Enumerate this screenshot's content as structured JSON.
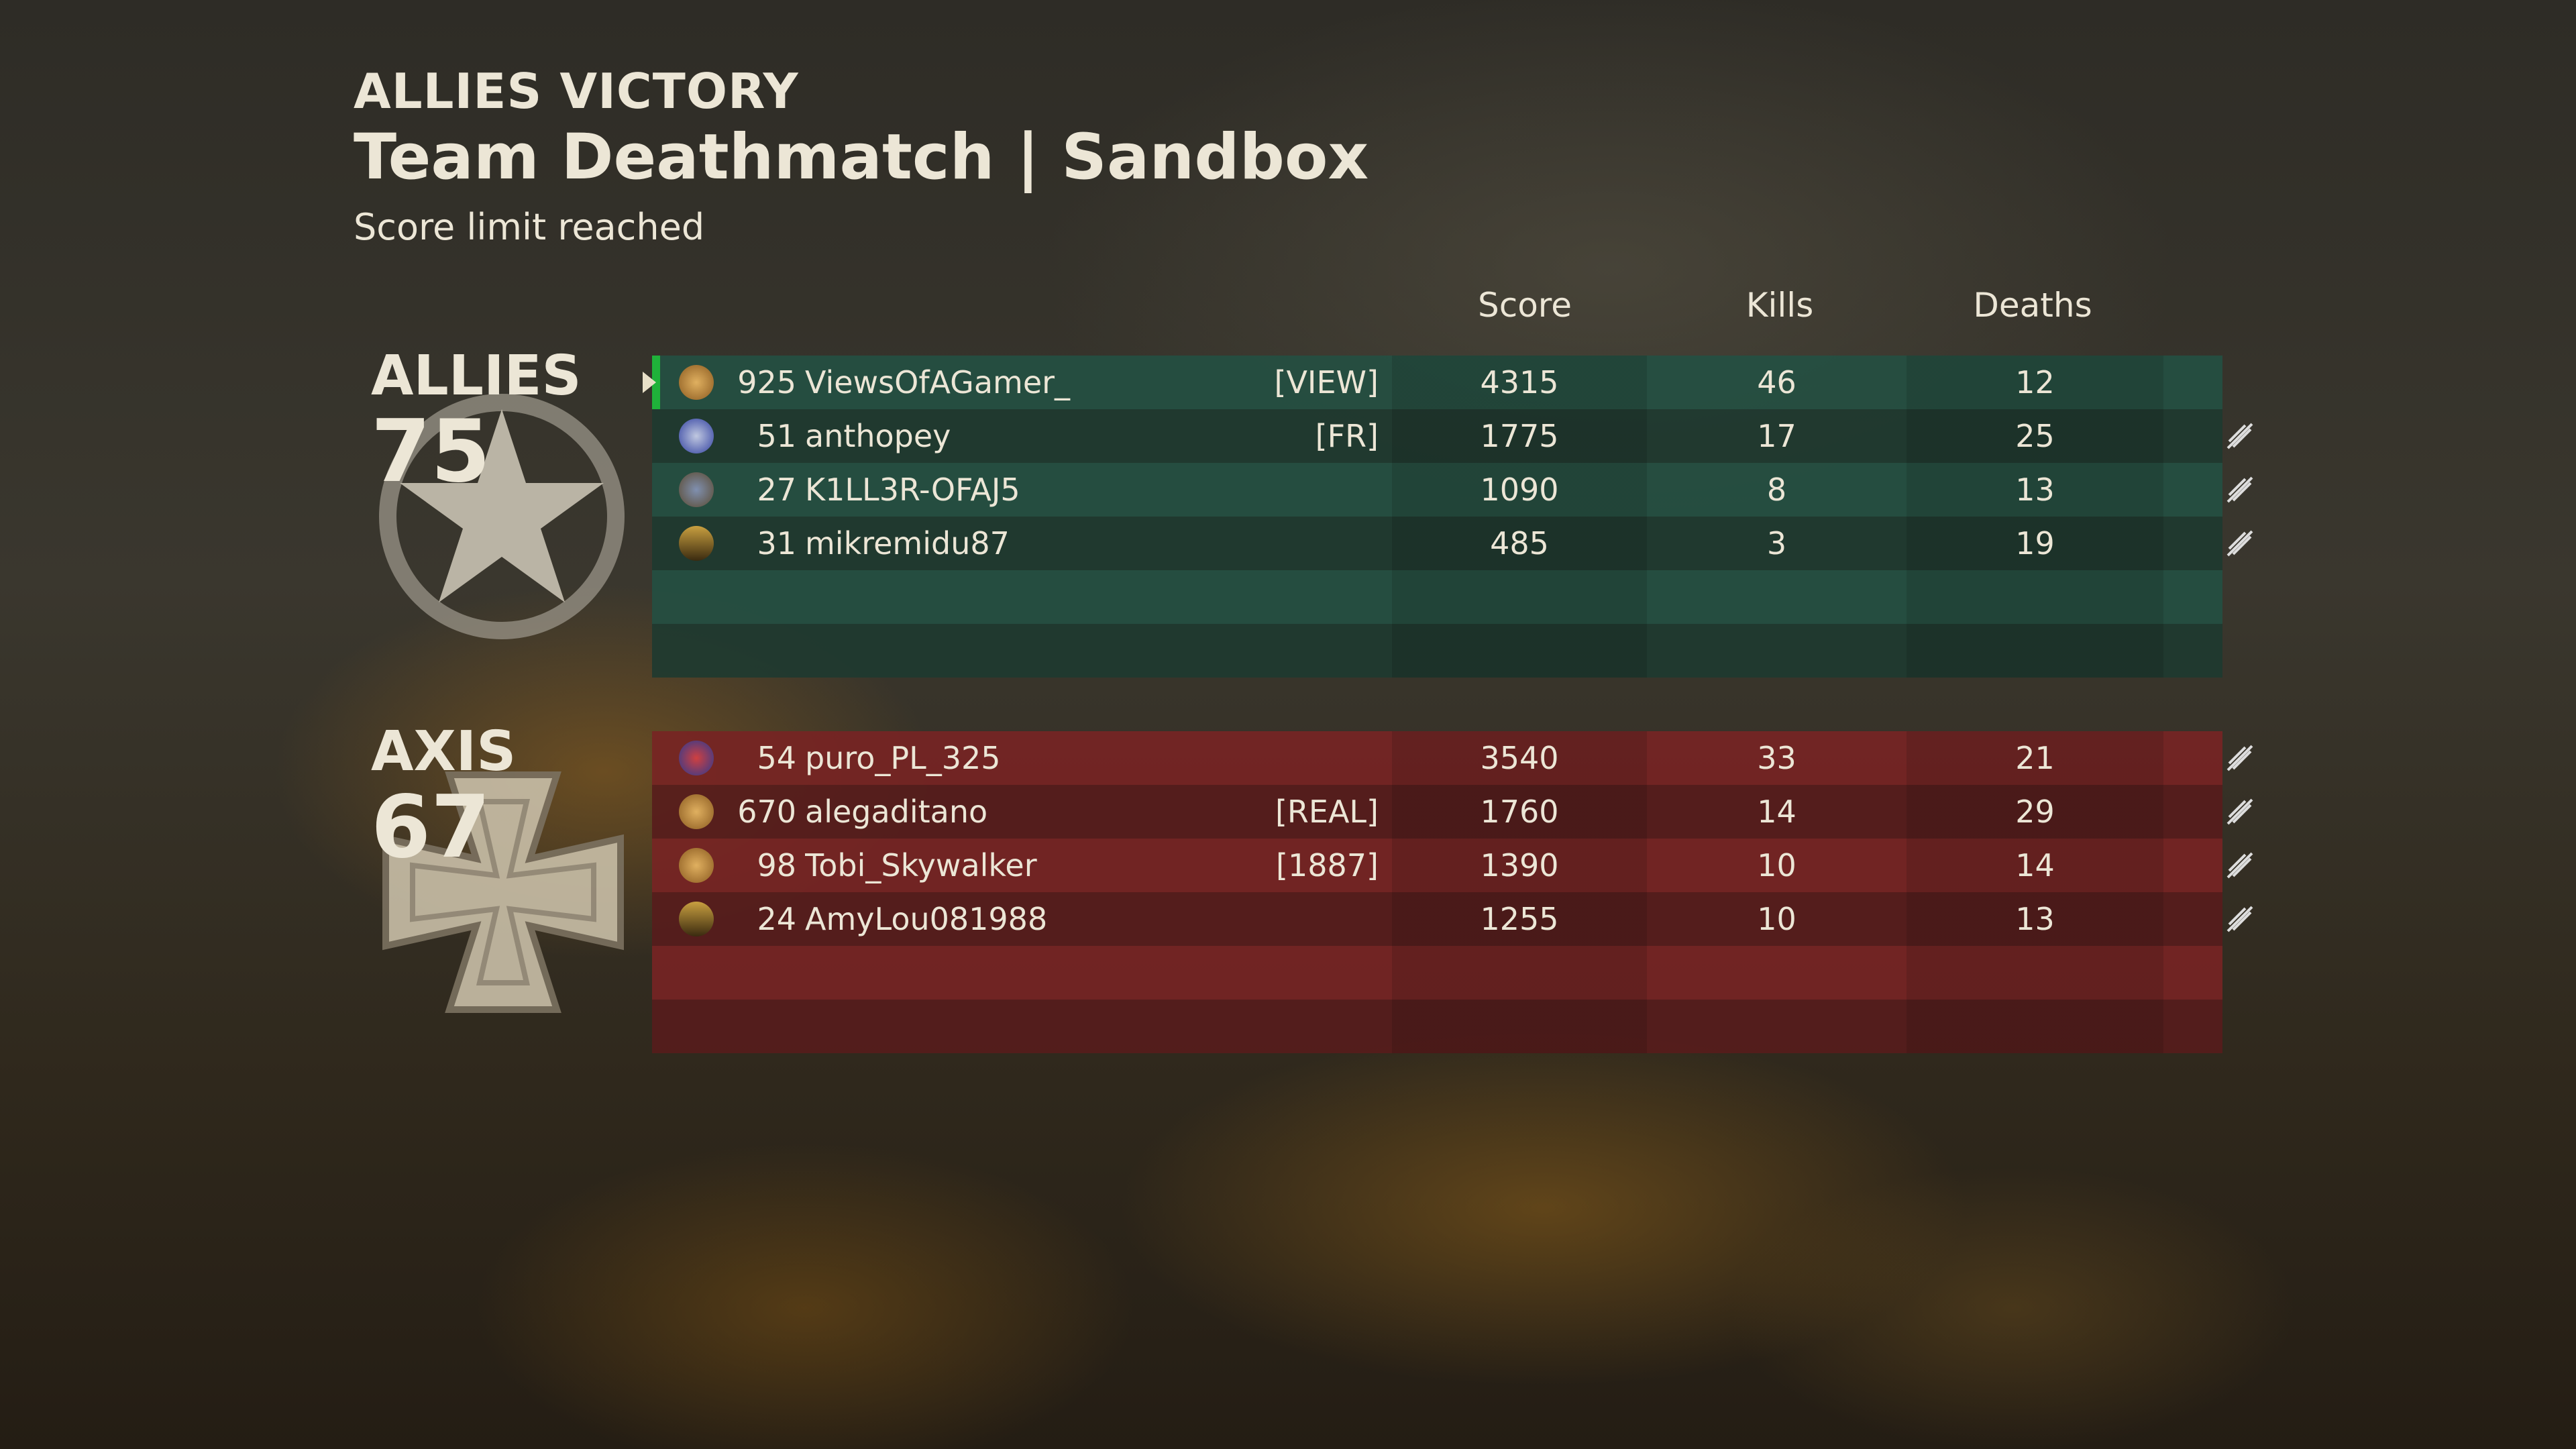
{
  "header": {
    "result": "ALLIES VICTORY",
    "mode": "Team Deathmatch | Sandbox",
    "reason": "Score limit reached"
  },
  "columns": {
    "score": "Score",
    "kills": "Kills",
    "deaths": "Deaths"
  },
  "colors": {
    "allies": "#23483f",
    "axis": "#6b2222",
    "highlight": "#1fb23a"
  },
  "allies": {
    "name": "ALLIES",
    "score": "75",
    "emblem": "star-icon",
    "players": [
      {
        "rank": "925",
        "name": "ViewsOfAGamer_",
        "clan": "[VIEW]",
        "score": "4315",
        "kills": "46",
        "deaths": "12",
        "badge": "prestige-medal",
        "self": true
      },
      {
        "rank": "51",
        "name": "anthopey",
        "clan": "[FR]",
        "score": "1775",
        "kills": "17",
        "deaths": "25",
        "badge": "blue-cross-medal"
      },
      {
        "rank": "27",
        "name": "K1LL3R-OFAJ5",
        "clan": "",
        "score": "1090",
        "kills": "8",
        "deaths": "13",
        "badge": "winged-insignia"
      },
      {
        "rank": "31",
        "name": "mikremidu87",
        "clan": "",
        "score": "485",
        "kills": "3",
        "deaths": "19",
        "badge": "sergeant-chevron"
      }
    ]
  },
  "axis": {
    "name": "AXIS",
    "score": "67",
    "emblem": "iron-cross-icon",
    "players": [
      {
        "rank": "54",
        "name": "puro_PL_325",
        "clan": "",
        "score": "3540",
        "kills": "33",
        "deaths": "21",
        "badge": "blue-star-medal"
      },
      {
        "rank": "670",
        "name": "alegaditano",
        "clan": "[REAL]",
        "score": "1760",
        "kills": "14",
        "deaths": "29",
        "badge": "prestige-medal"
      },
      {
        "rank": "98",
        "name": "Tobi_Skywalker",
        "clan": "[1887]",
        "score": "1390",
        "kills": "10",
        "deaths": "14",
        "badge": "prestige-medal"
      },
      {
        "rank": "24",
        "name": "AmyLou081988",
        "clan": "",
        "score": "1255",
        "kills": "10",
        "deaths": "13",
        "badge": "sergeant-chevron"
      }
    ]
  }
}
